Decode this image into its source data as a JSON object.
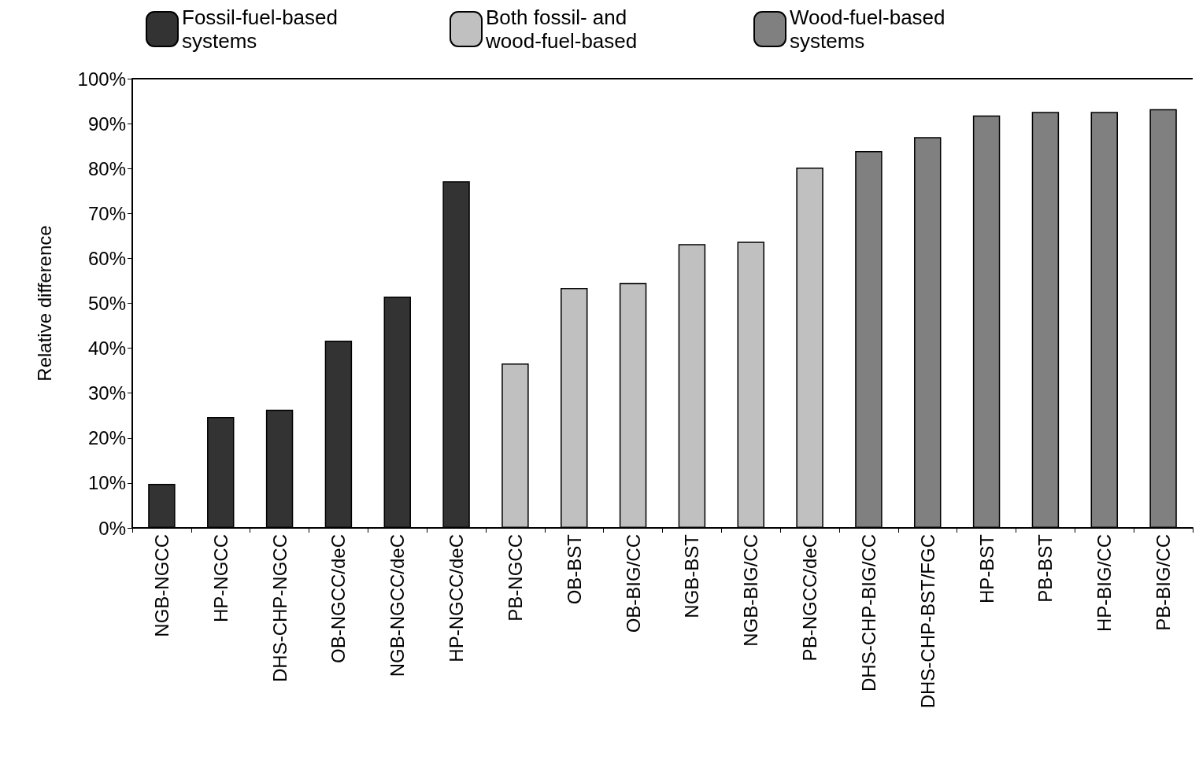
{
  "chart_data": {
    "type": "bar",
    "ylabel": "Relative difference",
    "categories": [
      "NGB-NGCC",
      "HP-NGCC",
      "DHS-CHP-NGCC",
      "OB-NGCC/deC",
      "NGB-NGCC/deC",
      "HP-NGCC/deC",
      "PB-NGCC",
      "OB-BST",
      "OB-BIG/CC",
      "NGB-BST",
      "NGB-BIG/CC",
      "PB-NGCC/deC",
      "DHS-CHP-BIG/CC",
      "DHS-CHP-BST/FGC",
      "HP-BST",
      "PB-BST",
      "HP-BIG/CC",
      "PB-BIG/CC"
    ],
    "series": [
      {
        "name": "Fossil-fuel-based systems",
        "color": "#333333",
        "values": [
          9.8,
          24.7,
          26.3,
          41.7,
          51.5,
          77.2,
          null,
          null,
          null,
          null,
          null,
          null,
          null,
          null,
          null,
          null,
          null,
          null
        ]
      },
      {
        "name": "Both fossil- and wood-fuel-based",
        "color": "#c0c0c0",
        "values": [
          null,
          null,
          null,
          null,
          null,
          null,
          36.6,
          53.4,
          54.5,
          63.2,
          63.7,
          80.2,
          null,
          null,
          null,
          null,
          null,
          null
        ]
      },
      {
        "name": "Wood-fuel-based systems",
        "color": "#808080",
        "values": [
          null,
          null,
          null,
          null,
          null,
          null,
          null,
          null,
          null,
          null,
          null,
          null,
          83.9,
          87.0,
          91.8,
          92.6,
          92.6,
          93.2
        ]
      }
    ],
    "ylim": [
      0,
      100
    ],
    "yticks": [
      {
        "value": 0,
        "label": "0%"
      },
      {
        "value": 10,
        "label": "10%"
      },
      {
        "value": 20,
        "label": "20%"
      },
      {
        "value": 30,
        "label": "30%"
      },
      {
        "value": 40,
        "label": "40%"
      },
      {
        "value": 50,
        "label": "50%"
      },
      {
        "value": 60,
        "label": "60%"
      },
      {
        "value": 70,
        "label": "70%"
      },
      {
        "value": 80,
        "label": "80%"
      },
      {
        "value": 90,
        "label": "90%"
      },
      {
        "value": 100,
        "label": "100%"
      }
    ],
    "grid": false,
    "legend": "top"
  }
}
